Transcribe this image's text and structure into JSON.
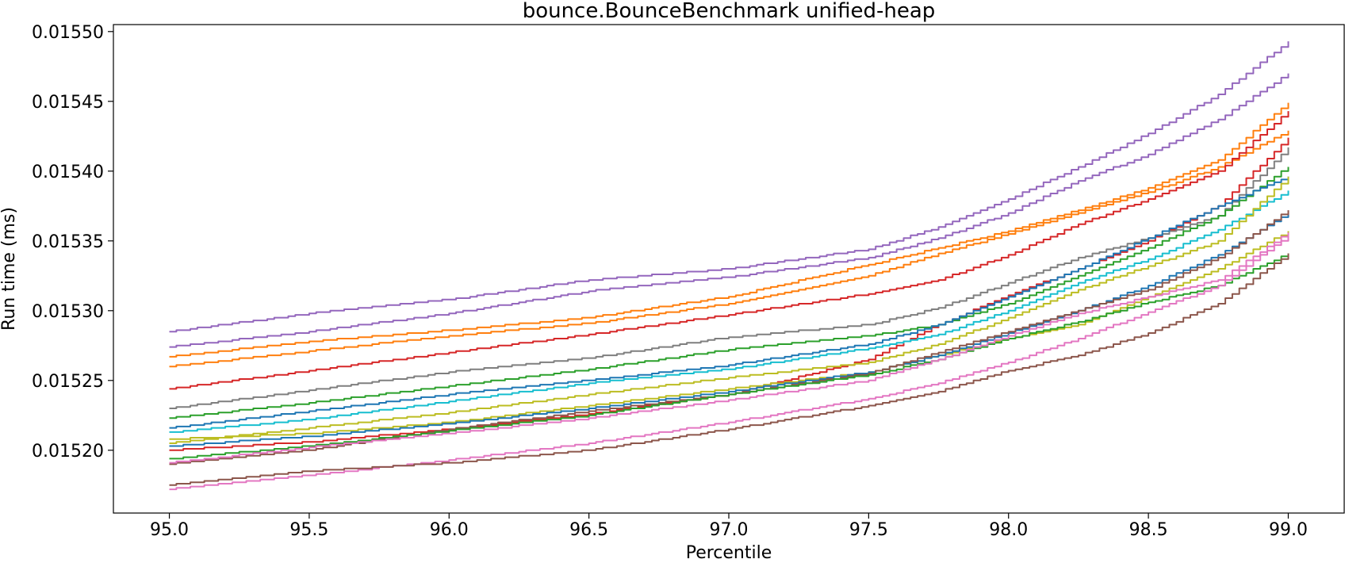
{
  "chart_data": {
    "type": "line",
    "title": "bounce.BounceBenchmark unified-heap",
    "xlabel": "Percentile",
    "ylabel": "Run time (ms)",
    "xlim": [
      94.8,
      99.2
    ],
    "ylim": [
      0.015155,
      0.015505
    ],
    "xticks": [
      "95.0",
      "95.5",
      "96.0",
      "96.5",
      "97.0",
      "97.5",
      "98.0",
      "98.5",
      "99.0"
    ],
    "yticks": [
      "0.01520",
      "0.01525",
      "0.01530",
      "0.01535",
      "0.01540",
      "0.01545",
      "0.01550"
    ],
    "grid": false,
    "legend": "none",
    "x": [
      95.0,
      95.5,
      96.0,
      96.5,
      97.0,
      97.5,
      97.75,
      98.0,
      98.25,
      98.5,
      98.75,
      99.0
    ],
    "series": [
      {
        "color": "#9467bd",
        "values": [
          0.015285,
          0.015298,
          0.015308,
          0.015322,
          0.01533,
          0.015344,
          0.01536,
          0.01538,
          0.015403,
          0.015427,
          0.015455,
          0.015493
        ]
      },
      {
        "color": "#9467bd",
        "values": [
          0.015274,
          0.015285,
          0.015298,
          0.015314,
          0.015324,
          0.015338,
          0.015352,
          0.01537,
          0.015393,
          0.015412,
          0.015437,
          0.01547
        ]
      },
      {
        "color": "#ff7f0e",
        "values": [
          0.015267,
          0.015278,
          0.015286,
          0.015295,
          0.01531,
          0.015333,
          0.015345,
          0.015357,
          0.015372,
          0.015388,
          0.015408,
          0.015449
        ]
      },
      {
        "color": "#ff7f0e",
        "values": [
          0.01526,
          0.015271,
          0.015282,
          0.015291,
          0.015305,
          0.015325,
          0.015341,
          0.015355,
          0.01537,
          0.015385,
          0.015403,
          0.015429
        ]
      },
      {
        "color": "#d62728",
        "values": [
          0.015244,
          0.015257,
          0.01527,
          0.015283,
          0.015297,
          0.015312,
          0.015322,
          0.01534,
          0.015362,
          0.01538,
          0.0154,
          0.015443
        ]
      },
      {
        "color": "#d62728",
        "values": [
          0.0152,
          0.015206,
          0.015215,
          0.015226,
          0.01524,
          0.015265,
          0.01529,
          0.015311,
          0.01533,
          0.01535,
          0.015375,
          0.015424
        ]
      },
      {
        "color": "#7f7f7f",
        "values": [
          0.01523,
          0.015243,
          0.015256,
          0.015266,
          0.015281,
          0.01529,
          0.015302,
          0.01532,
          0.015338,
          0.015352,
          0.015368,
          0.015417
        ]
      },
      {
        "color": "#2ca02c",
        "values": [
          0.015223,
          0.015234,
          0.015246,
          0.015258,
          0.015272,
          0.015282,
          0.01529,
          0.015305,
          0.015325,
          0.015345,
          0.015368,
          0.015403
        ]
      },
      {
        "color": "#1f77b4",
        "values": [
          0.015216,
          0.015228,
          0.01524,
          0.01525,
          0.015261,
          0.015276,
          0.01529,
          0.01531,
          0.01533,
          0.015352,
          0.015375,
          0.015396
        ]
      },
      {
        "color": "#17becf",
        "values": [
          0.015213,
          0.015222,
          0.015235,
          0.015248,
          0.015258,
          0.015273,
          0.015283,
          0.0153,
          0.01532,
          0.015337,
          0.015358,
          0.015386
        ]
      },
      {
        "color": "#bcbd22",
        "values": [
          0.015205,
          0.015216,
          0.015227,
          0.01524,
          0.015252,
          0.015263,
          0.015276,
          0.015295,
          0.015315,
          0.015332,
          0.01535,
          0.015396
        ]
      },
      {
        "color": "#bcbd22",
        "values": [
          0.015208,
          0.015212,
          0.01522,
          0.015232,
          0.015244,
          0.015256,
          0.015268,
          0.01528,
          0.01529,
          0.01531,
          0.01533,
          0.015357
        ]
      },
      {
        "color": "#1f77b4",
        "values": [
          0.015203,
          0.01521,
          0.015219,
          0.01523,
          0.015242,
          0.015256,
          0.015268,
          0.015284,
          0.0153,
          0.015318,
          0.01534,
          0.01537
        ]
      },
      {
        "color": "#8c564b",
        "values": [
          0.01519,
          0.0152,
          0.015215,
          0.015228,
          0.01524,
          0.015255,
          0.01527,
          0.015285,
          0.0153,
          0.015315,
          0.015338,
          0.015372
        ]
      },
      {
        "color": "#2ca02c",
        "values": [
          0.015194,
          0.015203,
          0.015214,
          0.015225,
          0.01524,
          0.015254,
          0.015265,
          0.01528,
          0.015292,
          0.015306,
          0.015318,
          0.015341
        ]
      },
      {
        "color": "#e377c2",
        "values": [
          0.015191,
          0.015202,
          0.015212,
          0.015223,
          0.015236,
          0.01525,
          0.015265,
          0.015282,
          0.015298,
          0.01531,
          0.015322,
          0.015356
        ]
      },
      {
        "color": "#e377c2",
        "values": [
          0.015172,
          0.015182,
          0.015193,
          0.015205,
          0.01522,
          0.015237,
          0.015248,
          0.015263,
          0.01528,
          0.015299,
          0.015318,
          0.015354
        ]
      },
      {
        "color": "#8c564b",
        "values": [
          0.015175,
          0.015185,
          0.015191,
          0.0152,
          0.015215,
          0.015232,
          0.015242,
          0.015257,
          0.015268,
          0.015284,
          0.015305,
          0.015341
        ]
      }
    ]
  }
}
